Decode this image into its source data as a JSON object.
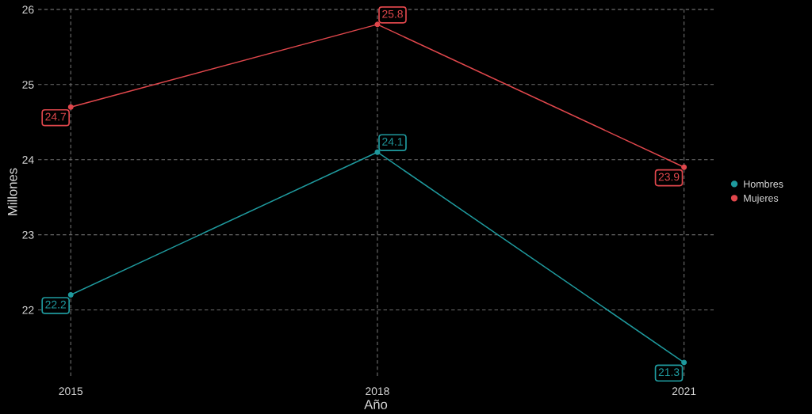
{
  "chart_data": {
    "type": "line",
    "xlabel": "Año",
    "ylabel": "Millones",
    "x": [
      2015,
      2018,
      2021
    ],
    "series": [
      {
        "name": "Hombres",
        "color": "#1f9a9e",
        "values": [
          22.2,
          24.1,
          21.3
        ]
      },
      {
        "name": "Mujeres",
        "color": "#e0474c",
        "values": [
          24.7,
          25.8,
          23.9
        ]
      }
    ],
    "xlim": [
      2014.68,
      2021.29
    ],
    "xticks": [
      2015,
      2018,
      2021
    ],
    "ylim": [
      21.12,
      26.02
    ],
    "yticks": [
      22,
      23,
      24,
      25,
      26
    ],
    "grid": true,
    "legend": "right",
    "marker": "circle",
    "line_style": "solid",
    "data_labels": true
  }
}
